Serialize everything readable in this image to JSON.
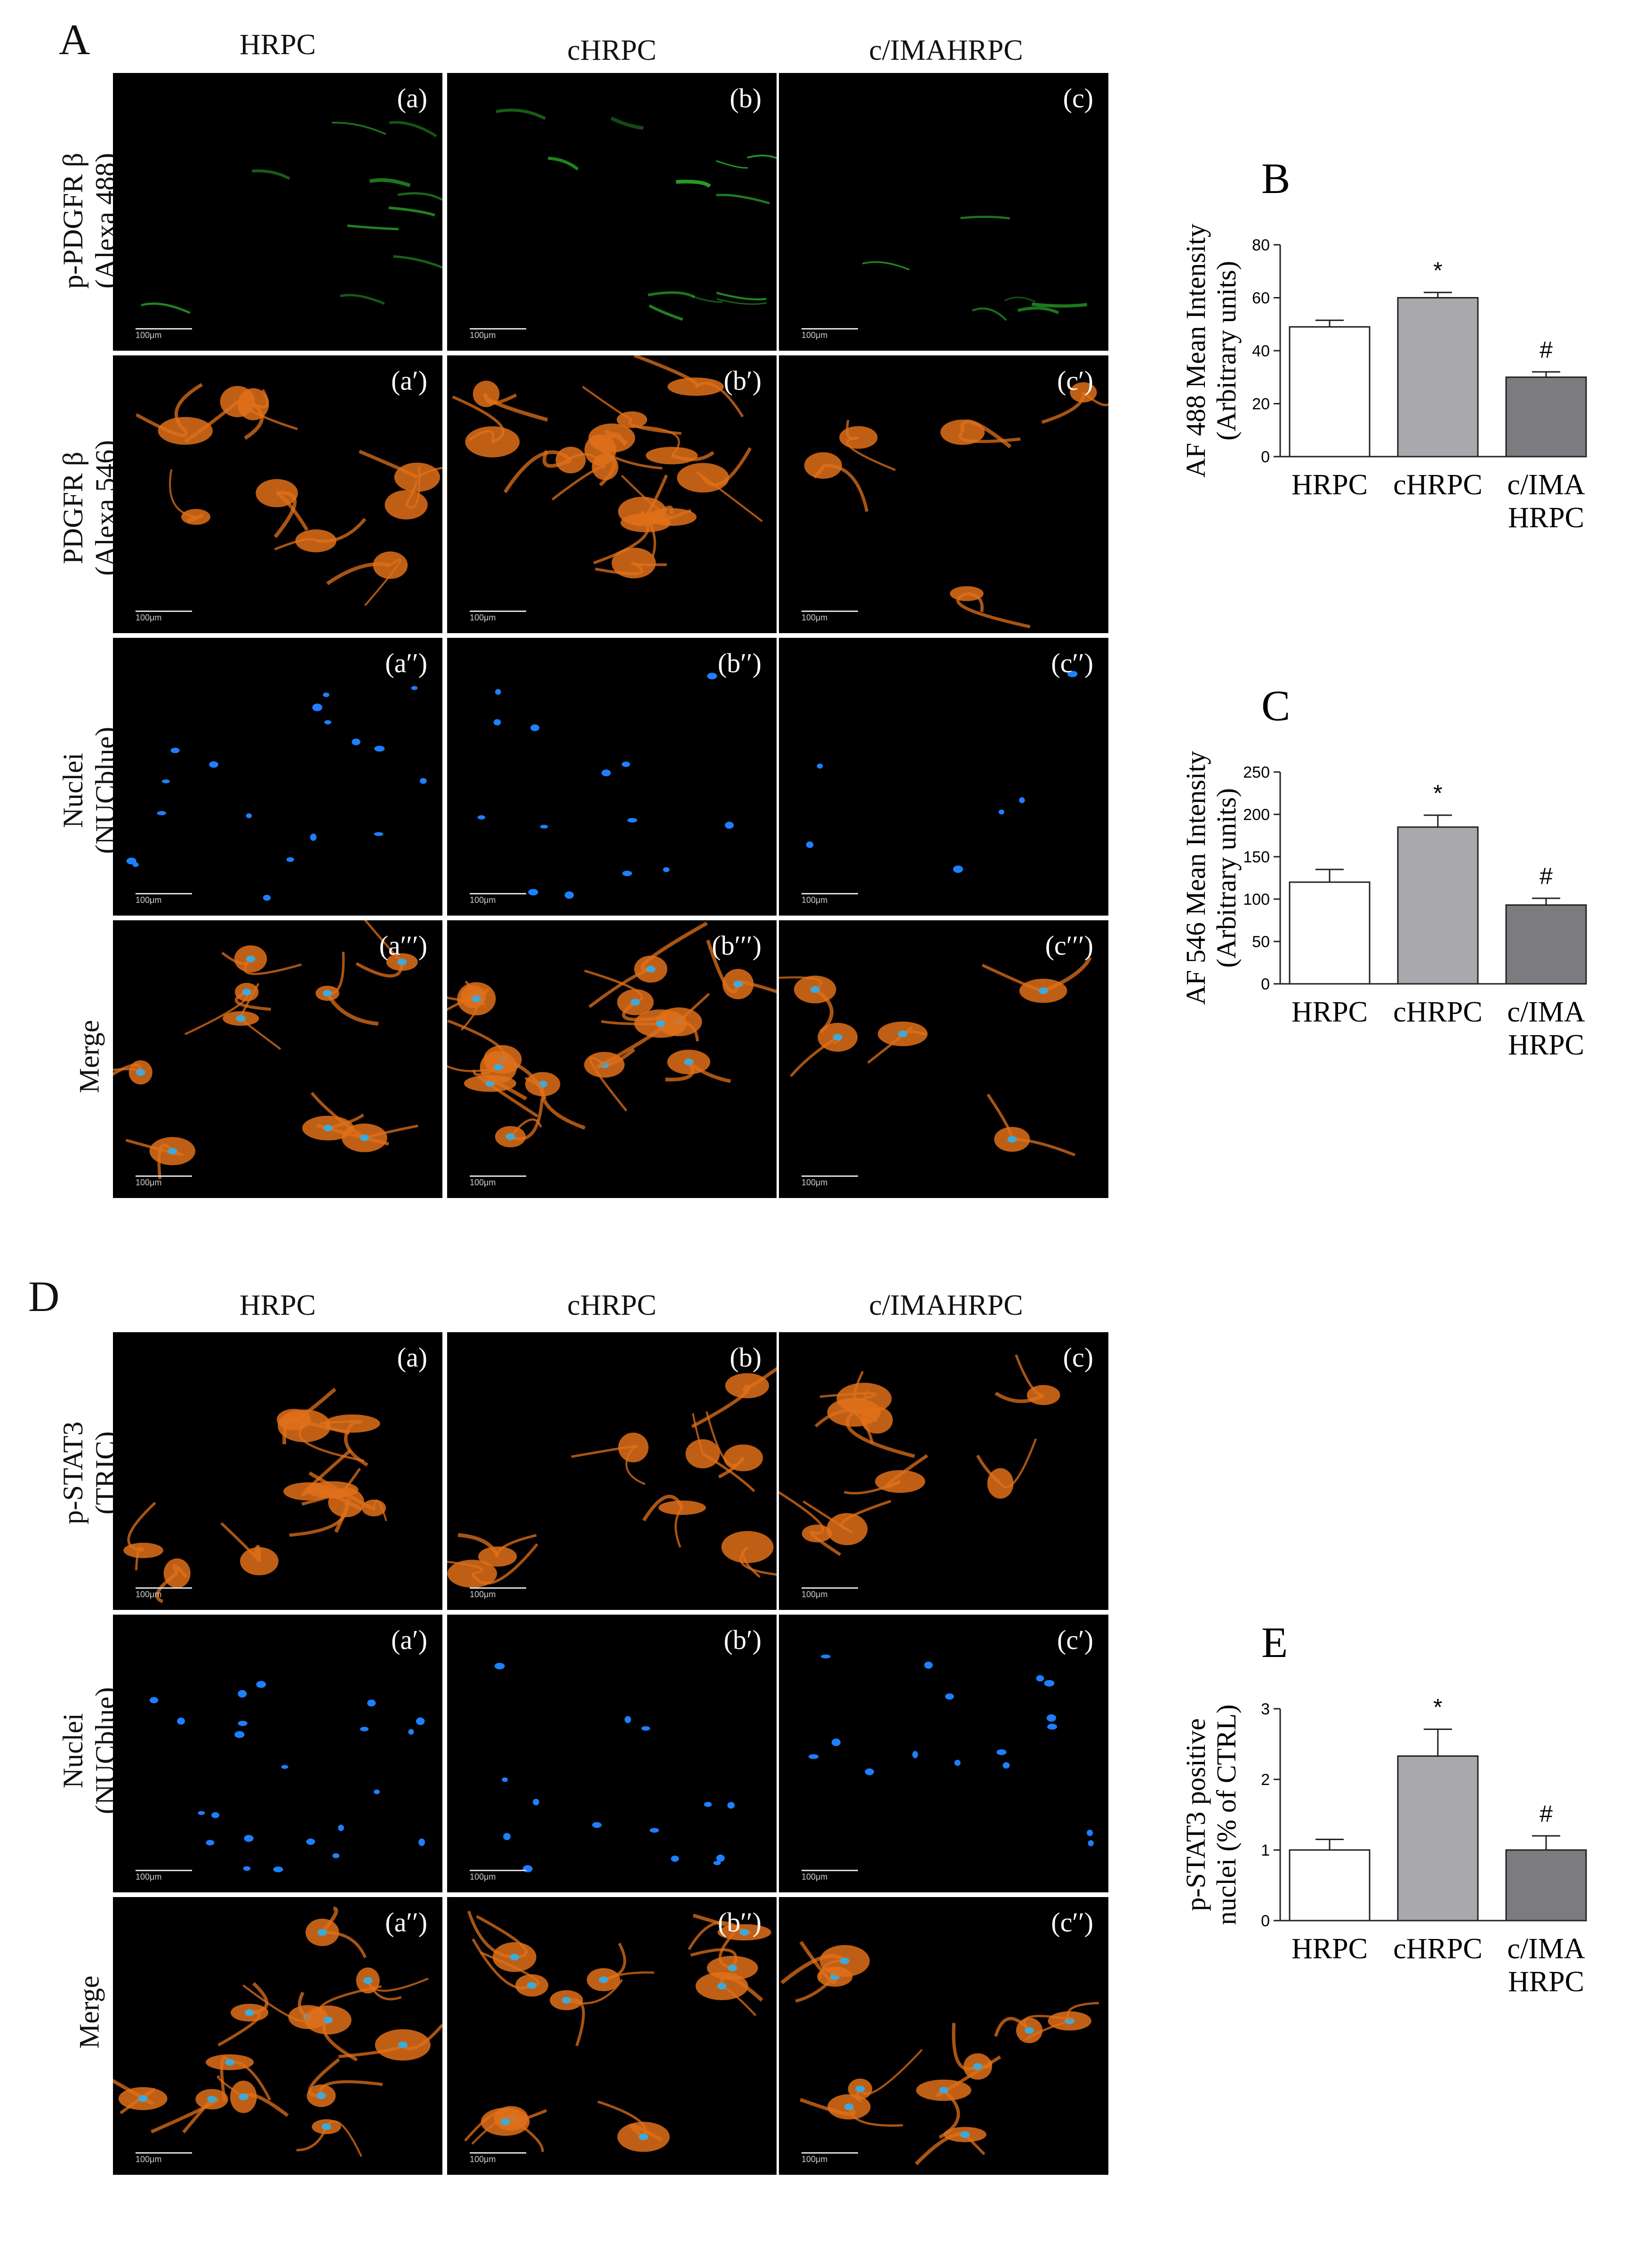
{
  "figure": {
    "panel_A": {
      "letter": "A",
      "columns": [
        "HRPC",
        "cHRPC",
        "c/IMAHRPC"
      ],
      "rows": [
        {
          "line1": "p-PDGFR β",
          "line2": "(Alexa 488)",
          "tags": [
            "(a)",
            "(b)",
            "(c)"
          ]
        },
        {
          "line1": "PDGFR β",
          "line2": "(Alexa 546)",
          "tags": [
            "(a′)",
            "(b′)",
            "(c′)"
          ]
        },
        {
          "line1": "Nuclei",
          "line2": "(NUCblue)",
          "tags": [
            "(a′′)",
            "(b′′)",
            "(c′′)"
          ]
        },
        {
          "line1": "Merge",
          "line2": "",
          "tags": [
            "(a′′′)",
            "(b′′′)",
            "(c′′′)"
          ]
        }
      ]
    },
    "panel_D": {
      "letter": "D",
      "columns": [
        "HRPC",
        "cHRPC",
        "c/IMAHRPC"
      ],
      "rows": [
        {
          "line1": "p-STAT3",
          "line2": "(TRIC)",
          "tags": [
            "(a)",
            "(b)",
            "(c)"
          ]
        },
        {
          "line1": "Nuclei",
          "line2": "(NUCblue)",
          "tags": [
            "(a′)",
            "(b′)",
            "(c′)"
          ]
        },
        {
          "line1": "Merge",
          "line2": "",
          "tags": [
            "(a′′)",
            "(b′′)",
            "(c′′)"
          ]
        }
      ]
    },
    "scale_bar": "100μm",
    "colors": {
      "green": "#33cc33",
      "orange": "#e0701a",
      "blue": "#1e7fff",
      "bar_white": "#ffffff",
      "bar_light": "#a9a9ad",
      "bar_dark": "#7c7c80"
    }
  },
  "chart_data": [
    {
      "letter": "B",
      "type": "bar",
      "categories": [
        "HRPC",
        "cHRPC",
        "c/IMA HRPC"
      ],
      "values": [
        49,
        60,
        30
      ],
      "errors": [
        2.5,
        2,
        2
      ],
      "annotations": [
        "",
        "*",
        "#"
      ],
      "ylabel_line1": "AF 488 Mean Intensity",
      "ylabel_line2": "(Arbitrary units)",
      "ylim": [
        0,
        80
      ],
      "yticks": [
        "0",
        "20",
        "40",
        "60",
        "80"
      ]
    },
    {
      "letter": "C",
      "type": "bar",
      "categories": [
        "HRPC",
        "cHRPC",
        "c/IMA HRPC"
      ],
      "values": [
        120,
        185,
        93
      ],
      "errors": [
        15,
        14,
        8
      ],
      "annotations": [
        "",
        "*",
        "#"
      ],
      "ylabel_line1": "AF 546 Mean Intensity",
      "ylabel_line2": "(Arbitrary units)",
      "ylim": [
        0,
        250
      ],
      "yticks": [
        "0",
        "50",
        "100",
        "150",
        "200",
        "250"
      ]
    },
    {
      "letter": "E",
      "type": "bar",
      "categories": [
        "HRPC",
        "cHRPC",
        "c/IMA HRPC"
      ],
      "values": [
        1.0,
        2.33,
        1.0
      ],
      "errors": [
        0.15,
        0.38,
        0.2
      ],
      "annotations": [
        "",
        "*",
        "#"
      ],
      "ylabel_line1": "p-STAT3 positive",
      "ylabel_line2": "nuclei (% of CTRL)",
      "ylim": [
        0,
        3
      ],
      "yticks": [
        "0",
        "1",
        "2",
        "3"
      ]
    }
  ]
}
